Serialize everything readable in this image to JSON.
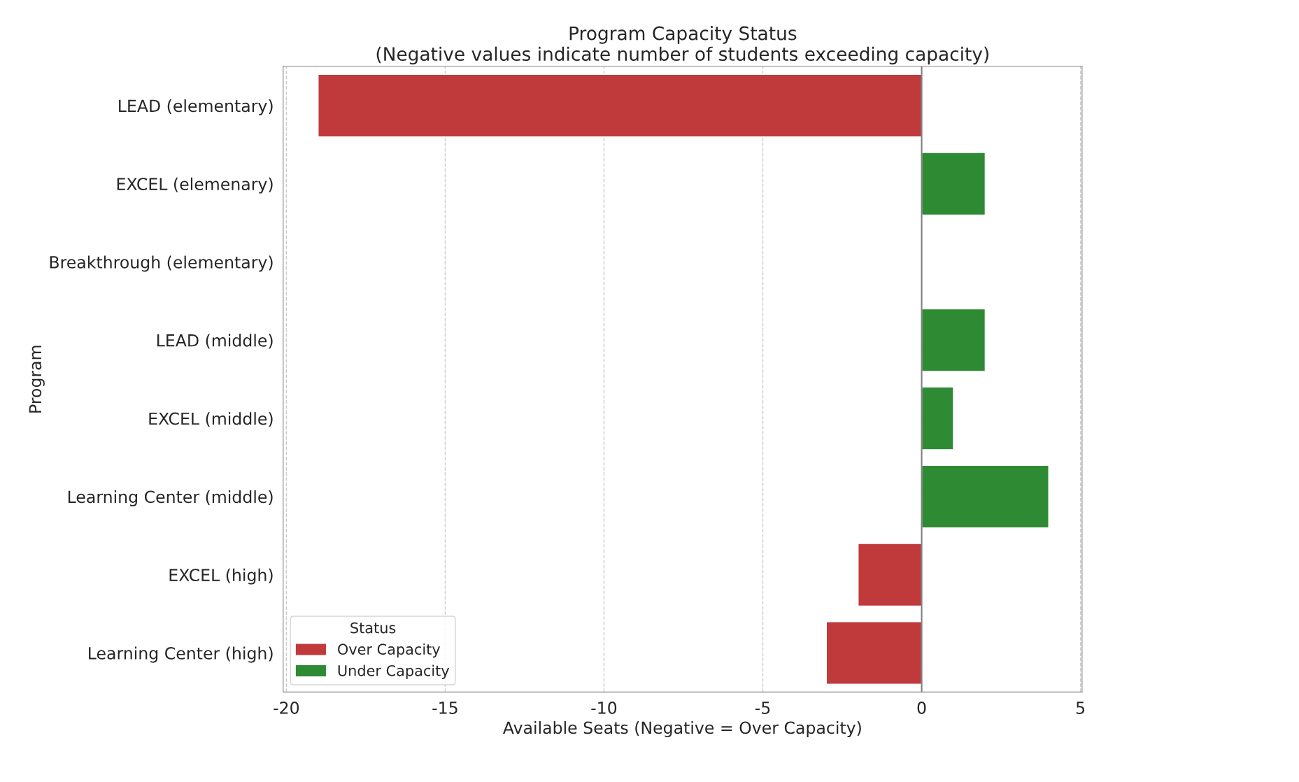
{
  "chart_data": {
    "type": "bar",
    "orientation": "horizontal",
    "title": "Program Capacity Status\n(Negative values indicate number of students exceeding capacity)",
    "xlabel": "Available Seats (Negative = Over Capacity)",
    "ylabel": "Program",
    "legend_title": "Status",
    "categories": [
      "LEAD (elementary)",
      "EXCEL (elemenary)",
      "Breakthrough (elementary)",
      "LEAD (middle)",
      "EXCEL (middle)",
      "Learning Center (middle)",
      "EXCEL (high)",
      "Learning Center (high)"
    ],
    "series": [
      {
        "name": "Over Capacity",
        "color": "#c0393b",
        "values": [
          -19,
          null,
          null,
          null,
          null,
          null,
          -2,
          -3
        ]
      },
      {
        "name": "Under Capacity",
        "color": "#2e8b34",
        "values": [
          null,
          2,
          null,
          2,
          1,
          4,
          null,
          null
        ]
      }
    ],
    "xlim": [
      -20.1,
      5.05
    ],
    "xticks": [
      -20,
      -15,
      -10,
      -5,
      0,
      5
    ],
    "ref_lines": [
      {
        "axis": "x",
        "value": 0,
        "color": "#808080"
      }
    ],
    "grid": "x",
    "legend": "bottom left"
  }
}
